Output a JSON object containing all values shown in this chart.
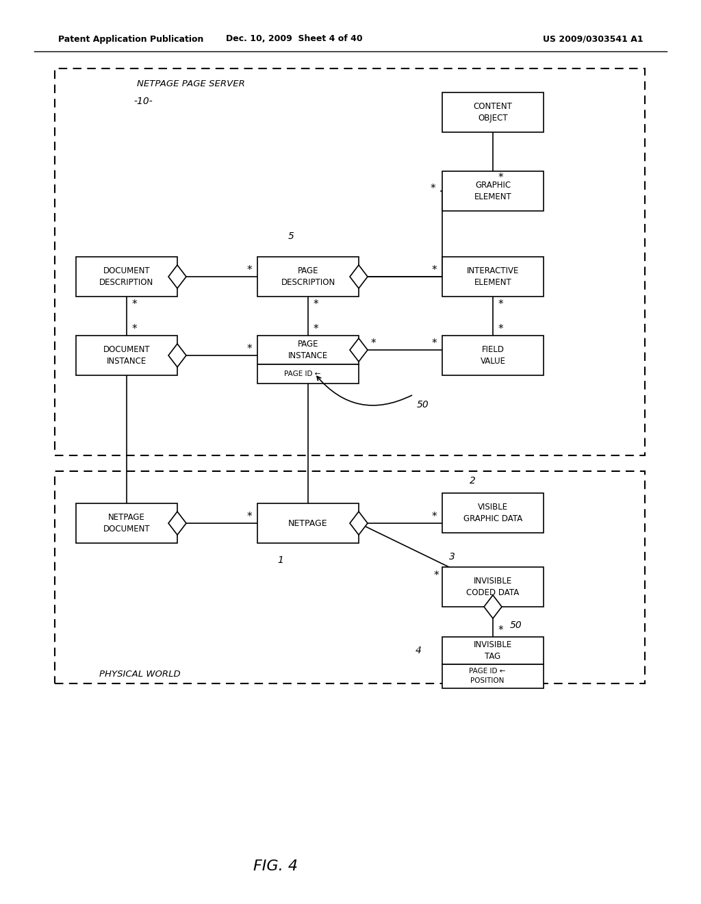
{
  "header_left": "Patent Application Publication",
  "header_mid": "Dec. 10, 2009  Sheet 4 of 40",
  "header_right": "US 2009/0303541 A1",
  "fig_label": "FIG. 4",
  "top_box_label": "NETPAGE PAGE SERVER",
  "top_box_id": "-10-",
  "bottom_box_label": "PHYSICAL WORLD",
  "bg_color": "#ffffff"
}
